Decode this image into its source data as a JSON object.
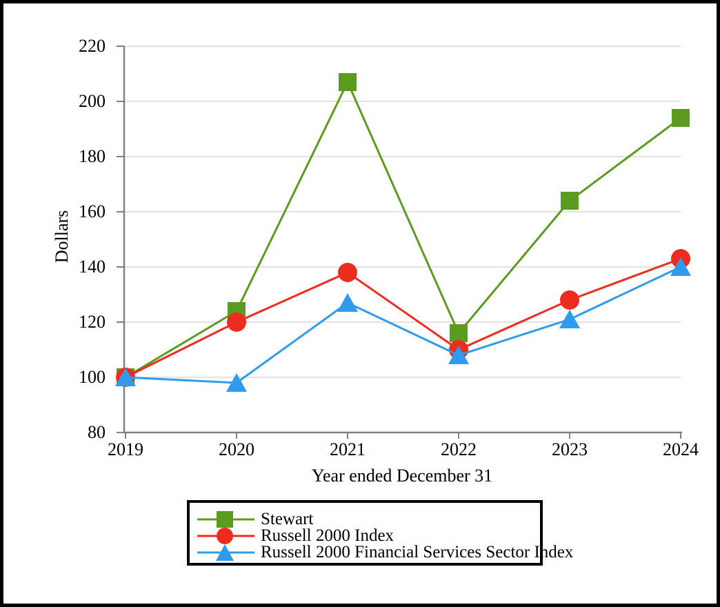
{
  "chart_data": {
    "type": "line",
    "xlabel": "Year ended December 31",
    "ylabel": "Dollars",
    "x_ticks": [
      "2019",
      "2020",
      "2021",
      "2022",
      "2023",
      "2024"
    ],
    "y_ticks": [
      80,
      100,
      120,
      140,
      160,
      180,
      200,
      220
    ],
    "ylim": [
      80,
      220
    ],
    "grid": "horizontal",
    "grid_color": "#d9d9d9",
    "axis_color": "#808080",
    "legend_position": "bottom",
    "series": [
      {
        "name": "Stewart",
        "marker": "square",
        "color": "#5b9b1f",
        "values": [
          100,
          124,
          207,
          116,
          164,
          194
        ]
      },
      {
        "name": "Russell 2000 Index",
        "marker": "circle",
        "color": "#ee2c1e",
        "values": [
          100,
          120,
          138,
          110,
          128,
          143
        ]
      },
      {
        "name": "Russell 2000 Financial Services Sector Index",
        "marker": "triangle",
        "color": "#2e9bee",
        "values": [
          100,
          98,
          127,
          108,
          121,
          140
        ]
      }
    ]
  }
}
